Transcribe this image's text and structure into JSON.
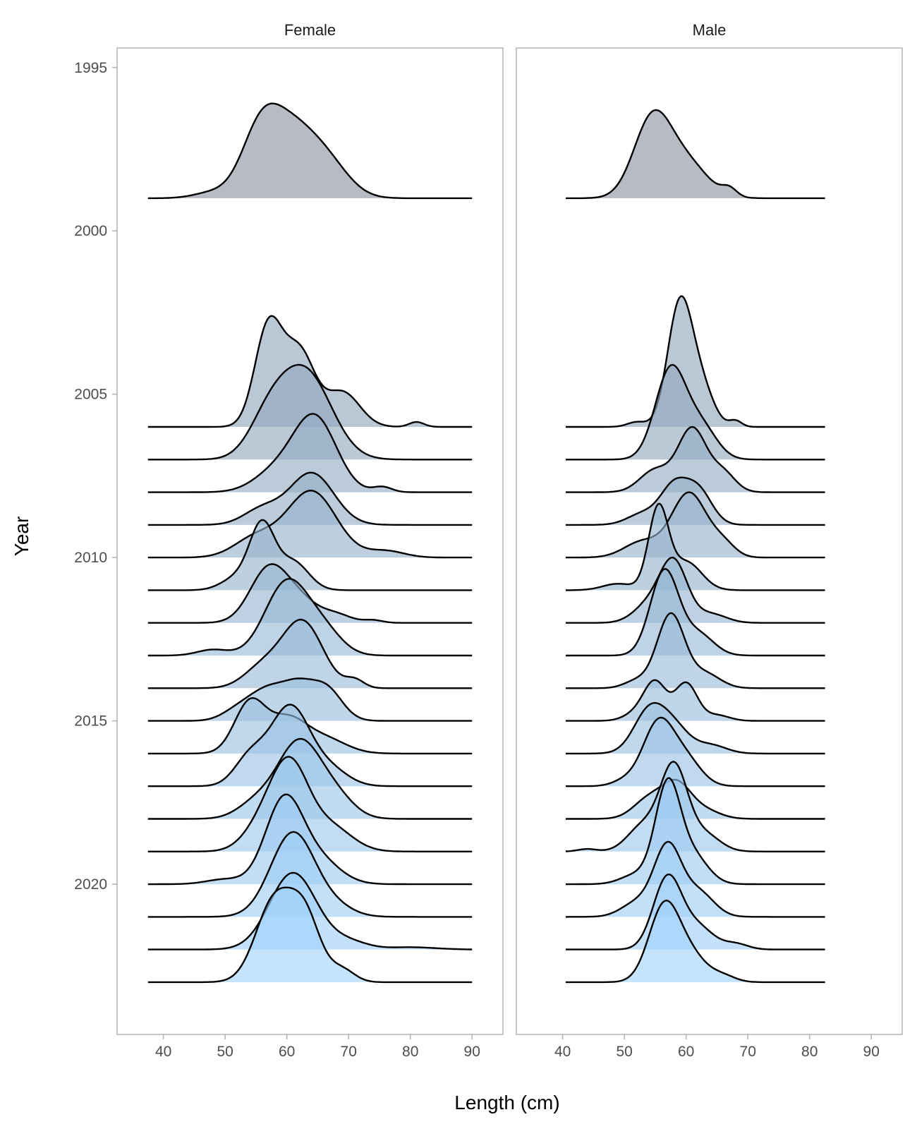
{
  "chart_data": {
    "type": "ridgeline",
    "xlabel": "Length (cm)",
    "ylabel": "Year",
    "x_ticks": [
      40,
      50,
      60,
      70,
      80,
      90
    ],
    "xlim": [
      32.5,
      95
    ],
    "y_ticks": [
      1995,
      2000,
      2005,
      2010,
      2015,
      2020
    ],
    "ylim": [
      1994.4,
      2024.6
    ],
    "fill_colors": {
      "early": "#8a939f",
      "late": "#9fd2fb"
    },
    "panels": [
      {
        "label": "Female",
        "x_range": [
          37.5,
          90
        ],
        "series": [
          {
            "year": 1999,
            "peak": 2.9,
            "components": [
              [
                60.5,
                4.3,
                1.0
              ],
              [
                55.5,
                3.0,
                0.7
              ],
              [
                67,
                3.5,
                0.35
              ],
              [
                48,
                3.0,
                0.08
              ]
            ]
          },
          {
            "year": 2006,
            "peak": 3.4,
            "components": [
              [
                57,
                2.2,
                1.0
              ],
              [
                62,
                2.5,
                0.75
              ],
              [
                69,
                2.8,
                0.35
              ],
              [
                81,
                1.2,
                0.05
              ]
            ]
          },
          {
            "year": 2007,
            "peak": 2.9,
            "components": [
              [
                63,
                4.2,
                1.0
              ],
              [
                57,
                3.2,
                0.4
              ]
            ]
          },
          {
            "year": 2008,
            "peak": 2.4,
            "components": [
              [
                64.5,
                3.5,
                1.0
              ],
              [
                58,
                3.5,
                0.25
              ],
              [
                75.5,
                1.5,
                0.07
              ]
            ]
          },
          {
            "year": 2009,
            "peak": 1.6,
            "components": [
              [
                64,
                3.6,
                1.0
              ],
              [
                56,
                3.0,
                0.3
              ]
            ]
          },
          {
            "year": 2010,
            "peak": 2.05,
            "components": [
              [
                64,
                4.0,
                1.0
              ],
              [
                55,
                3.5,
                0.3
              ],
              [
                76,
                3.0,
                0.1
              ]
            ]
          },
          {
            "year": 2011,
            "peak": 2.15,
            "components": [
              [
                56,
                2.0,
                1.0
              ],
              [
                61,
                2.5,
                0.45
              ],
              [
                52,
                2.5,
                0.2
              ]
            ]
          },
          {
            "year": 2012,
            "peak": 1.8,
            "components": [
              [
                57,
                3.0,
                1.0
              ],
              [
                62,
                3.0,
                0.4
              ],
              [
                68,
                2.5,
                0.15
              ],
              [
                74,
                1.5,
                0.05
              ]
            ]
          },
          {
            "year": 2013,
            "peak": 2.35,
            "components": [
              [
                60,
                3.5,
                1.0
              ],
              [
                66,
                3.0,
                0.3
              ],
              [
                48,
                2.5,
                0.08
              ]
            ]
          },
          {
            "year": 2014,
            "peak": 2.1,
            "components": [
              [
                62.5,
                3.3,
                1.0
              ],
              [
                56,
                3.0,
                0.3
              ],
              [
                71,
                1.5,
                0.12
              ]
            ]
          },
          {
            "year": 2015,
            "peak": 1.3,
            "components": [
              [
                57,
                3.0,
                0.95
              ],
              [
                62,
                2.5,
                0.9
              ],
              [
                66.5,
                2.5,
                0.95
              ],
              [
                52,
                2.5,
                0.3
              ]
            ]
          },
          {
            "year": 2016,
            "peak": 1.7,
            "components": [
              [
                54,
                2.5,
                1.0
              ],
              [
                60,
                3.0,
                0.65
              ],
              [
                66,
                3.5,
                0.3
              ]
            ]
          },
          {
            "year": 2017,
            "peak": 2.5,
            "components": [
              [
                60.5,
                3.2,
                1.0
              ],
              [
                54,
                2.5,
                0.35
              ],
              [
                67,
                3.0,
                0.2
              ]
            ]
          },
          {
            "year": 2018,
            "peak": 2.45,
            "components": [
              [
                62,
                3.5,
                1.0
              ],
              [
                68,
                3.0,
                0.25
              ],
              [
                55,
                3.0,
                0.2
              ]
            ]
          },
          {
            "year": 2019,
            "peak": 2.9,
            "components": [
              [
                60.5,
                3.0,
                1.0
              ],
              [
                56,
                3.0,
                0.3
              ],
              [
                67,
                3.5,
                0.3
              ]
            ]
          },
          {
            "year": 2020,
            "peak": 2.75,
            "components": [
              [
                59.5,
                3.0,
                1.0
              ],
              [
                65,
                3.5,
                0.3
              ],
              [
                50,
                3.0,
                0.06
              ]
            ]
          },
          {
            "year": 2021,
            "peak": 2.6,
            "components": [
              [
                61,
                3.6,
                1.0
              ],
              [
                68,
                3.0,
                0.1
              ]
            ]
          },
          {
            "year": 2022,
            "peak": 2.35,
            "components": [
              [
                61,
                3.8,
                1.0
              ],
              [
                70,
                3.0,
                0.1
              ],
              [
                80,
                4.0,
                0.03
              ]
            ]
          },
          {
            "year": 2023,
            "peak": 2.9,
            "components": [
              [
                58,
                3.0,
                1.0
              ],
              [
                63,
                2.5,
                0.75
              ],
              [
                69,
                2.0,
                0.15
              ]
            ]
          }
        ]
      },
      {
        "label": "Male",
        "x_range": [
          40.5,
          82.5
        ],
        "series": [
          {
            "year": 1999,
            "peak": 2.7,
            "components": [
              [
                54.5,
                3.0,
                1.0
              ],
              [
                60,
                3.5,
                0.45
              ],
              [
                67,
                1.2,
                0.1
              ]
            ]
          },
          {
            "year": 2006,
            "peak": 4.0,
            "components": [
              [
                59,
                2.0,
                1.0
              ],
              [
                62.5,
                2.0,
                0.3
              ],
              [
                52,
                1.5,
                0.04
              ],
              [
                68,
                1.0,
                0.05
              ]
            ]
          },
          {
            "year": 2007,
            "peak": 2.9,
            "components": [
              [
                57.5,
                2.5,
                1.0
              ],
              [
                62.5,
                2.5,
                0.35
              ]
            ]
          },
          {
            "year": 2008,
            "peak": 2.0,
            "components": [
              [
                61,
                2.3,
                1.0
              ],
              [
                55,
                2.5,
                0.35
              ],
              [
                66,
                2.0,
                0.3
              ]
            ]
          },
          {
            "year": 2009,
            "peak": 1.45,
            "components": [
              [
                58,
                2.2,
                1.0
              ],
              [
                62,
                2.2,
                0.9
              ],
              [
                53,
                2.5,
                0.3
              ]
            ]
          },
          {
            "year": 2010,
            "peak": 2.0,
            "components": [
              [
                60.5,
                2.8,
                1.0
              ],
              [
                53,
                3.0,
                0.25
              ],
              [
                66,
                2.0,
                0.2
              ]
            ]
          },
          {
            "year": 2011,
            "peak": 2.65,
            "components": [
              [
                55.5,
                1.6,
                1.0
              ],
              [
                60,
                2.5,
                0.35
              ],
              [
                49,
                2.5,
                0.08
              ]
            ]
          },
          {
            "year": 2012,
            "peak": 2.0,
            "components": [
              [
                58,
                2.2,
                1.0
              ],
              [
                54,
                2.5,
                0.3
              ],
              [
                64,
                2.5,
                0.15
              ]
            ]
          },
          {
            "year": 2013,
            "peak": 2.65,
            "components": [
              [
                56.5,
                2.3,
                1.0
              ],
              [
                62,
                2.5,
                0.25
              ]
            ]
          },
          {
            "year": 2014,
            "peak": 2.3,
            "components": [
              [
                57.5,
                2.2,
                1.0
              ],
              [
                63,
                2.5,
                0.2
              ],
              [
                52,
                2.0,
                0.1
              ]
            ]
          },
          {
            "year": 2015,
            "peak": 1.25,
            "components": [
              [
                55,
                1.8,
                1.0
              ],
              [
                60,
                1.8,
                1.0
              ],
              [
                52,
                2.0,
                0.2
              ],
              [
                65,
                2.0,
                0.15
              ]
            ]
          },
          {
            "year": 2016,
            "peak": 1.55,
            "components": [
              [
                54,
                2.5,
                1.0
              ],
              [
                58,
                2.5,
                0.6
              ],
              [
                64,
                2.5,
                0.2
              ]
            ]
          },
          {
            "year": 2017,
            "peak": 2.1,
            "components": [
              [
                55.5,
                2.5,
                1.0
              ],
              [
                60,
                2.5,
                0.4
              ],
              [
                50,
                2.0,
                0.08
              ]
            ]
          },
          {
            "year": 2018,
            "peak": 1.2,
            "components": [
              [
                58.5,
                2.3,
                1.0
              ],
              [
                54,
                2.5,
                0.6
              ],
              [
                63,
                2.5,
                0.25
              ]
            ]
          },
          {
            "year": 2019,
            "peak": 2.75,
            "components": [
              [
                58,
                2.2,
                1.0
              ],
              [
                53,
                2.5,
                0.3
              ],
              [
                63,
                2.5,
                0.2
              ],
              [
                44,
                1.5,
                0.03
              ]
            ]
          },
          {
            "year": 2020,
            "peak": 3.25,
            "components": [
              [
                57,
                2.0,
                1.0
              ],
              [
                61,
                2.5,
                0.3
              ],
              [
                52,
                2.5,
                0.1
              ]
            ]
          },
          {
            "year": 2021,
            "peak": 2.3,
            "components": [
              [
                57,
                2.2,
                1.0
              ],
              [
                62,
                2.5,
                0.35
              ],
              [
                52,
                2.5,
                0.2
              ]
            ]
          },
          {
            "year": 2022,
            "peak": 2.3,
            "components": [
              [
                57,
                2.3,
                1.0
              ],
              [
                62,
                2.5,
                0.3
              ],
              [
                68,
                2.0,
                0.08
              ]
            ]
          },
          {
            "year": 2023,
            "peak": 2.5,
            "components": [
              [
                56.5,
                2.5,
                1.0
              ],
              [
                61,
                2.5,
                0.3
              ],
              [
                66,
                2.0,
                0.08
              ]
            ]
          }
        ]
      }
    ]
  }
}
